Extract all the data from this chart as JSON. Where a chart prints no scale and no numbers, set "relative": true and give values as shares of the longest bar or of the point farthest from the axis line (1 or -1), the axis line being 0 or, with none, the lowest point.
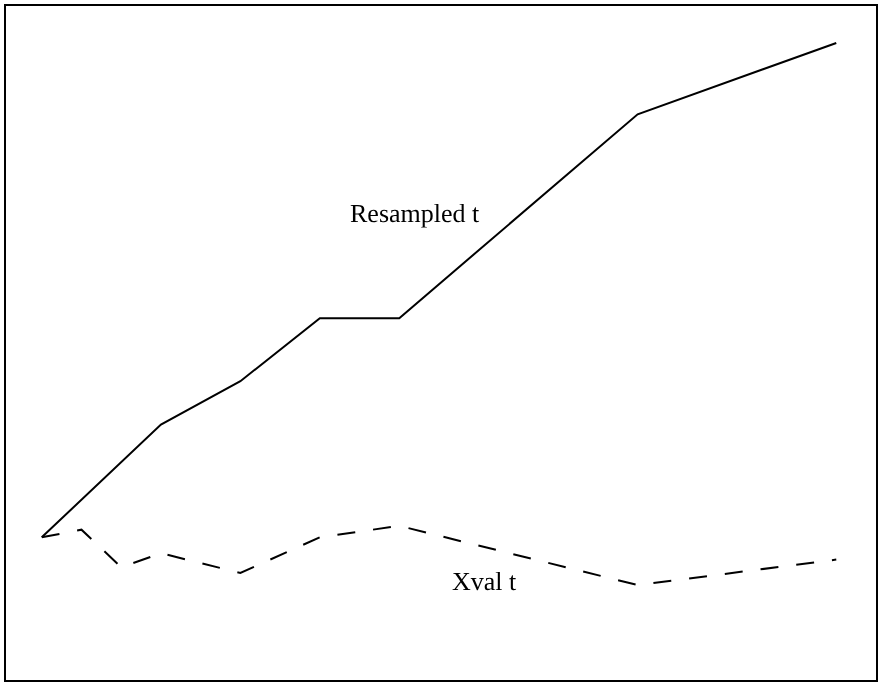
{
  "chart_data": {
    "type": "line",
    "relative": true,
    "legend": false,
    "marker": "none",
    "categories": [
      null,
      null,
      null,
      null,
      null,
      null,
      null,
      null,
      null,
      null,
      null,
      null,
      null,
      null,
      null,
      null,
      null,
      null,
      null,
      null,
      null
    ],
    "series": [
      {
        "name": "Resampled t",
        "color": "#000000",
        "line_style": "solid",
        "values": [
          0.224,
          null,
          null,
          0.401,
          null,
          0.469,
          null,
          0.568,
          null,
          0.568,
          null,
          null,
          null,
          null,
          null,
          0.888,
          null,
          null,
          null,
          null,
          1
        ]
      },
      {
        "name": "Xval t",
        "color": "#000000",
        "line_style": "dashed",
        "values": [
          0.224,
          0.236,
          0.177,
          0.199,
          null,
          0.168,
          null,
          0.224,
          null,
          0.242,
          null,
          null,
          null,
          null,
          null,
          0.149,
          null,
          null,
          null,
          null,
          0.189
        ]
      }
    ]
  }
}
